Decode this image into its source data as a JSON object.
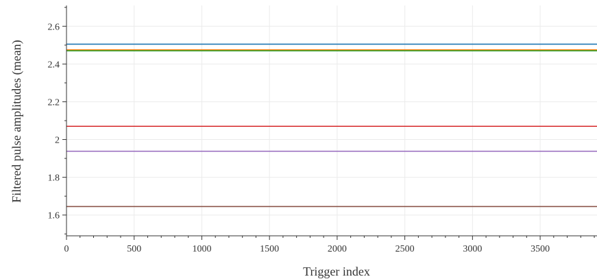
{
  "chart_data": {
    "type": "line",
    "title": "",
    "xlabel": "Trigger index",
    "ylabel": "Filtered pulse amplitudes (mean)",
    "xlim": [
      0,
      3920
    ],
    "ylim": [
      1.49,
      2.71
    ],
    "x_ticks": [
      0,
      500,
      1000,
      1500,
      2000,
      2500,
      3000,
      3500
    ],
    "x_tick_labels": [
      "0",
      "500",
      "1000",
      "1500",
      "2000",
      "2500",
      "3000",
      "3500"
    ],
    "y_ticks": [
      1.6,
      1.8,
      2.0,
      2.2,
      2.4,
      2.6
    ],
    "y_tick_labels": [
      "1.6",
      "1.8",
      "2",
      "2.2",
      "2.4",
      "2.6"
    ],
    "grid": true,
    "legend": "none",
    "x": [
      0,
      3920
    ],
    "series": [
      {
        "values": [
          2.505,
          2.505
        ],
        "color": "#1f77b4"
      },
      {
        "values": [
          2.475,
          2.475
        ],
        "color": "#ff7f0e"
      },
      {
        "values": [
          2.47,
          2.47
        ],
        "color": "#2ca02c"
      },
      {
        "values": [
          2.07,
          2.07
        ],
        "color": "#d62728"
      },
      {
        "values": [
          1.938,
          1.938
        ],
        "color": "#9467bd"
      },
      {
        "values": [
          1.645,
          1.645
        ],
        "color": "#8c564b"
      }
    ]
  }
}
